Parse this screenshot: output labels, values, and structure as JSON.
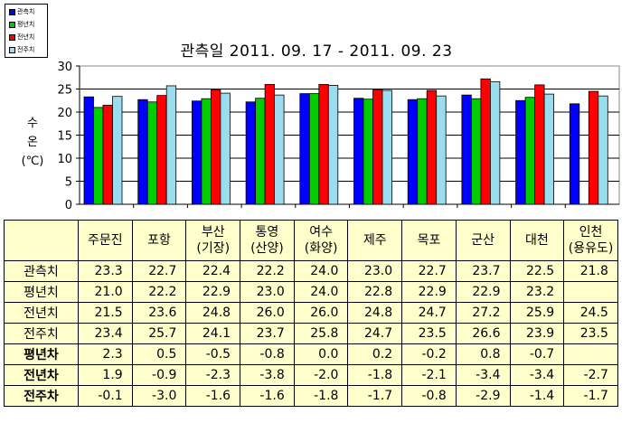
{
  "chart_data": {
    "type": "bar",
    "title": "관측일 2011. 09. 17 -  2011. 09. 23",
    "ylabel_lines": [
      "수",
      "온",
      "(℃)"
    ],
    "ylim": [
      0,
      30
    ],
    "yticks": [
      0,
      5,
      10,
      15,
      20,
      25,
      30
    ],
    "grid": true,
    "legend_placement": "top-left",
    "categories": [
      "주문진",
      "포항",
      "부산(기장)",
      "통영(산양)",
      "여수(화양)",
      "제주",
      "목포",
      "군산",
      "대천",
      "인천(용유도)"
    ],
    "series": [
      {
        "name": "관측치",
        "color": "#0000ff",
        "values": [
          23.3,
          22.7,
          22.4,
          22.2,
          24.0,
          23.0,
          22.7,
          23.7,
          22.5,
          21.8
        ]
      },
      {
        "name": "평년치",
        "color": "#00cc00",
        "values": [
          21.0,
          22.2,
          22.9,
          23.0,
          24.0,
          22.8,
          22.9,
          22.9,
          23.2,
          null
        ]
      },
      {
        "name": "전년치",
        "color": "#ff0000",
        "values": [
          21.5,
          23.6,
          24.8,
          26.0,
          26.0,
          24.8,
          24.7,
          27.2,
          25.9,
          24.5
        ]
      },
      {
        "name": "전주치",
        "color": "#99ddee",
        "values": [
          23.4,
          25.7,
          24.1,
          23.7,
          25.8,
          24.7,
          23.5,
          26.6,
          23.9,
          23.5
        ]
      }
    ]
  },
  "table": {
    "header_cells": [
      {
        "line1": "주문진",
        "line2": ""
      },
      {
        "line1": "포항",
        "line2": ""
      },
      {
        "line1": "부산",
        "line2": "(기장)"
      },
      {
        "line1": "통영",
        "line2": "(산양)"
      },
      {
        "line1": "여수",
        "line2": "(화양)"
      },
      {
        "line1": "제주",
        "line2": ""
      },
      {
        "line1": "목포",
        "line2": ""
      },
      {
        "line1": "군산",
        "line2": ""
      },
      {
        "line1": "대천",
        "line2": ""
      },
      {
        "line1": "인천",
        "line2": "(용유도)"
      }
    ],
    "rows": [
      {
        "label": "관측치",
        "bold": false,
        "cells": [
          "23.3",
          "22.7",
          "22.4",
          "22.2",
          "24.0",
          "23.0",
          "22.7",
          "23.7",
          "22.5",
          "21.8"
        ]
      },
      {
        "label": "평년치",
        "bold": false,
        "cells": [
          "21.0",
          "22.2",
          "22.9",
          "23.0",
          "24.0",
          "22.8",
          "22.9",
          "22.9",
          "23.2",
          ""
        ]
      },
      {
        "label": "전년치",
        "bold": false,
        "cells": [
          "21.5",
          "23.6",
          "24.8",
          "26.0",
          "26.0",
          "24.8",
          "24.7",
          "27.2",
          "25.9",
          "24.5"
        ]
      },
      {
        "label": "전주치",
        "bold": false,
        "cells": [
          "23.4",
          "25.7",
          "24.1",
          "23.7",
          "25.8",
          "24.7",
          "23.5",
          "26.6",
          "23.9",
          "23.5"
        ]
      },
      {
        "label": "평년차",
        "bold": true,
        "cells": [
          "2.3",
          "0.5",
          "-0.5",
          "-0.8",
          "0.0",
          "0.2",
          "-0.2",
          "0.8",
          "-0.7",
          ""
        ]
      },
      {
        "label": "전년차",
        "bold": true,
        "cells": [
          "1.9",
          "-0.9",
          "-2.3",
          "-3.8",
          "-2.0",
          "-1.8",
          "-2.1",
          "-3.4",
          "-3.4",
          "-2.7"
        ]
      },
      {
        "label": "전주차",
        "bold": true,
        "cells": [
          "-0.1",
          "-3.0",
          "-1.6",
          "-1.6",
          "-1.8",
          "-1.7",
          "-0.8",
          "-2.9",
          "-1.4",
          "-1.7"
        ]
      }
    ]
  }
}
